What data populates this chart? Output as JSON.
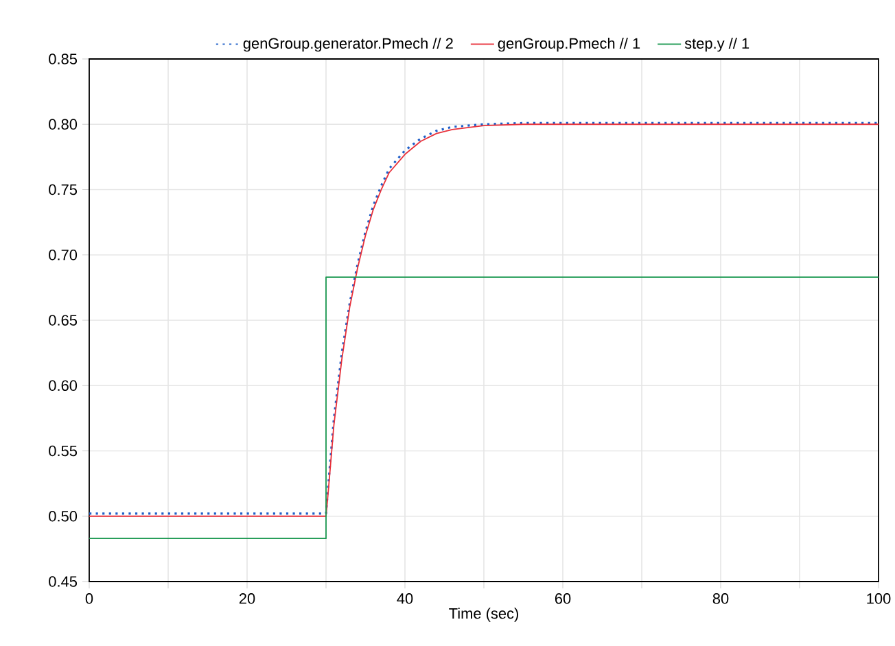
{
  "chart_data": {
    "type": "line",
    "xlabel": "Time (sec)",
    "xlim": [
      0,
      100
    ],
    "ylim": [
      0.45,
      0.85
    ],
    "xticks": [
      0,
      {
        "value": 10,
        "label": null
      },
      20,
      {
        "value": 30,
        "label": null
      },
      40,
      {
        "value": 50,
        "label": null
      },
      60,
      {
        "value": 70,
        "label": null
      },
      80,
      {
        "value": 90,
        "label": null
      },
      100
    ],
    "yticks": [
      0.45,
      {
        "value": 0.5,
        "label": "0.50"
      },
      0.55,
      {
        "value": 0.6,
        "label": "0.60"
      },
      0.65,
      {
        "value": 0.7,
        "label": "0.70"
      },
      0.75,
      {
        "value": 0.8,
        "label": "0.80"
      },
      0.85
    ],
    "grid": true,
    "legend": "top",
    "marker": "none",
    "series": [
      {
        "name": "genGroup.generator.Pmech // 2",
        "color": "#1f5fc8",
        "line_style": "dotted",
        "x": [
          0,
          30,
          30.3,
          31,
          32,
          33,
          34,
          35,
          36,
          37,
          38,
          40,
          42,
          44,
          46,
          50,
          55,
          100
        ],
        "values": [
          0.502,
          0.502,
          0.525,
          0.575,
          0.625,
          0.663,
          0.693,
          0.718,
          0.738,
          0.753,
          0.766,
          0.78,
          0.789,
          0.795,
          0.798,
          0.8,
          0.801,
          0.801
        ]
      },
      {
        "name": "genGroup.Pmech // 1",
        "color": "#e8303a",
        "line_style": "solid",
        "x": [
          0,
          30,
          30.3,
          31,
          32,
          33,
          34,
          35,
          36,
          37,
          38,
          40,
          42,
          44,
          46,
          50,
          55,
          100
        ],
        "values": [
          0.5,
          0.5,
          0.52,
          0.57,
          0.62,
          0.66,
          0.69,
          0.715,
          0.735,
          0.75,
          0.763,
          0.777,
          0.787,
          0.793,
          0.796,
          0.799,
          0.8,
          0.8
        ]
      },
      {
        "name": "step.y // 1",
        "type": "step",
        "color": "#1a9850",
        "line_style": "solid",
        "x": [
          0,
          30,
          100
        ],
        "values": [
          0.483,
          0.683,
          0.683
        ]
      }
    ]
  }
}
